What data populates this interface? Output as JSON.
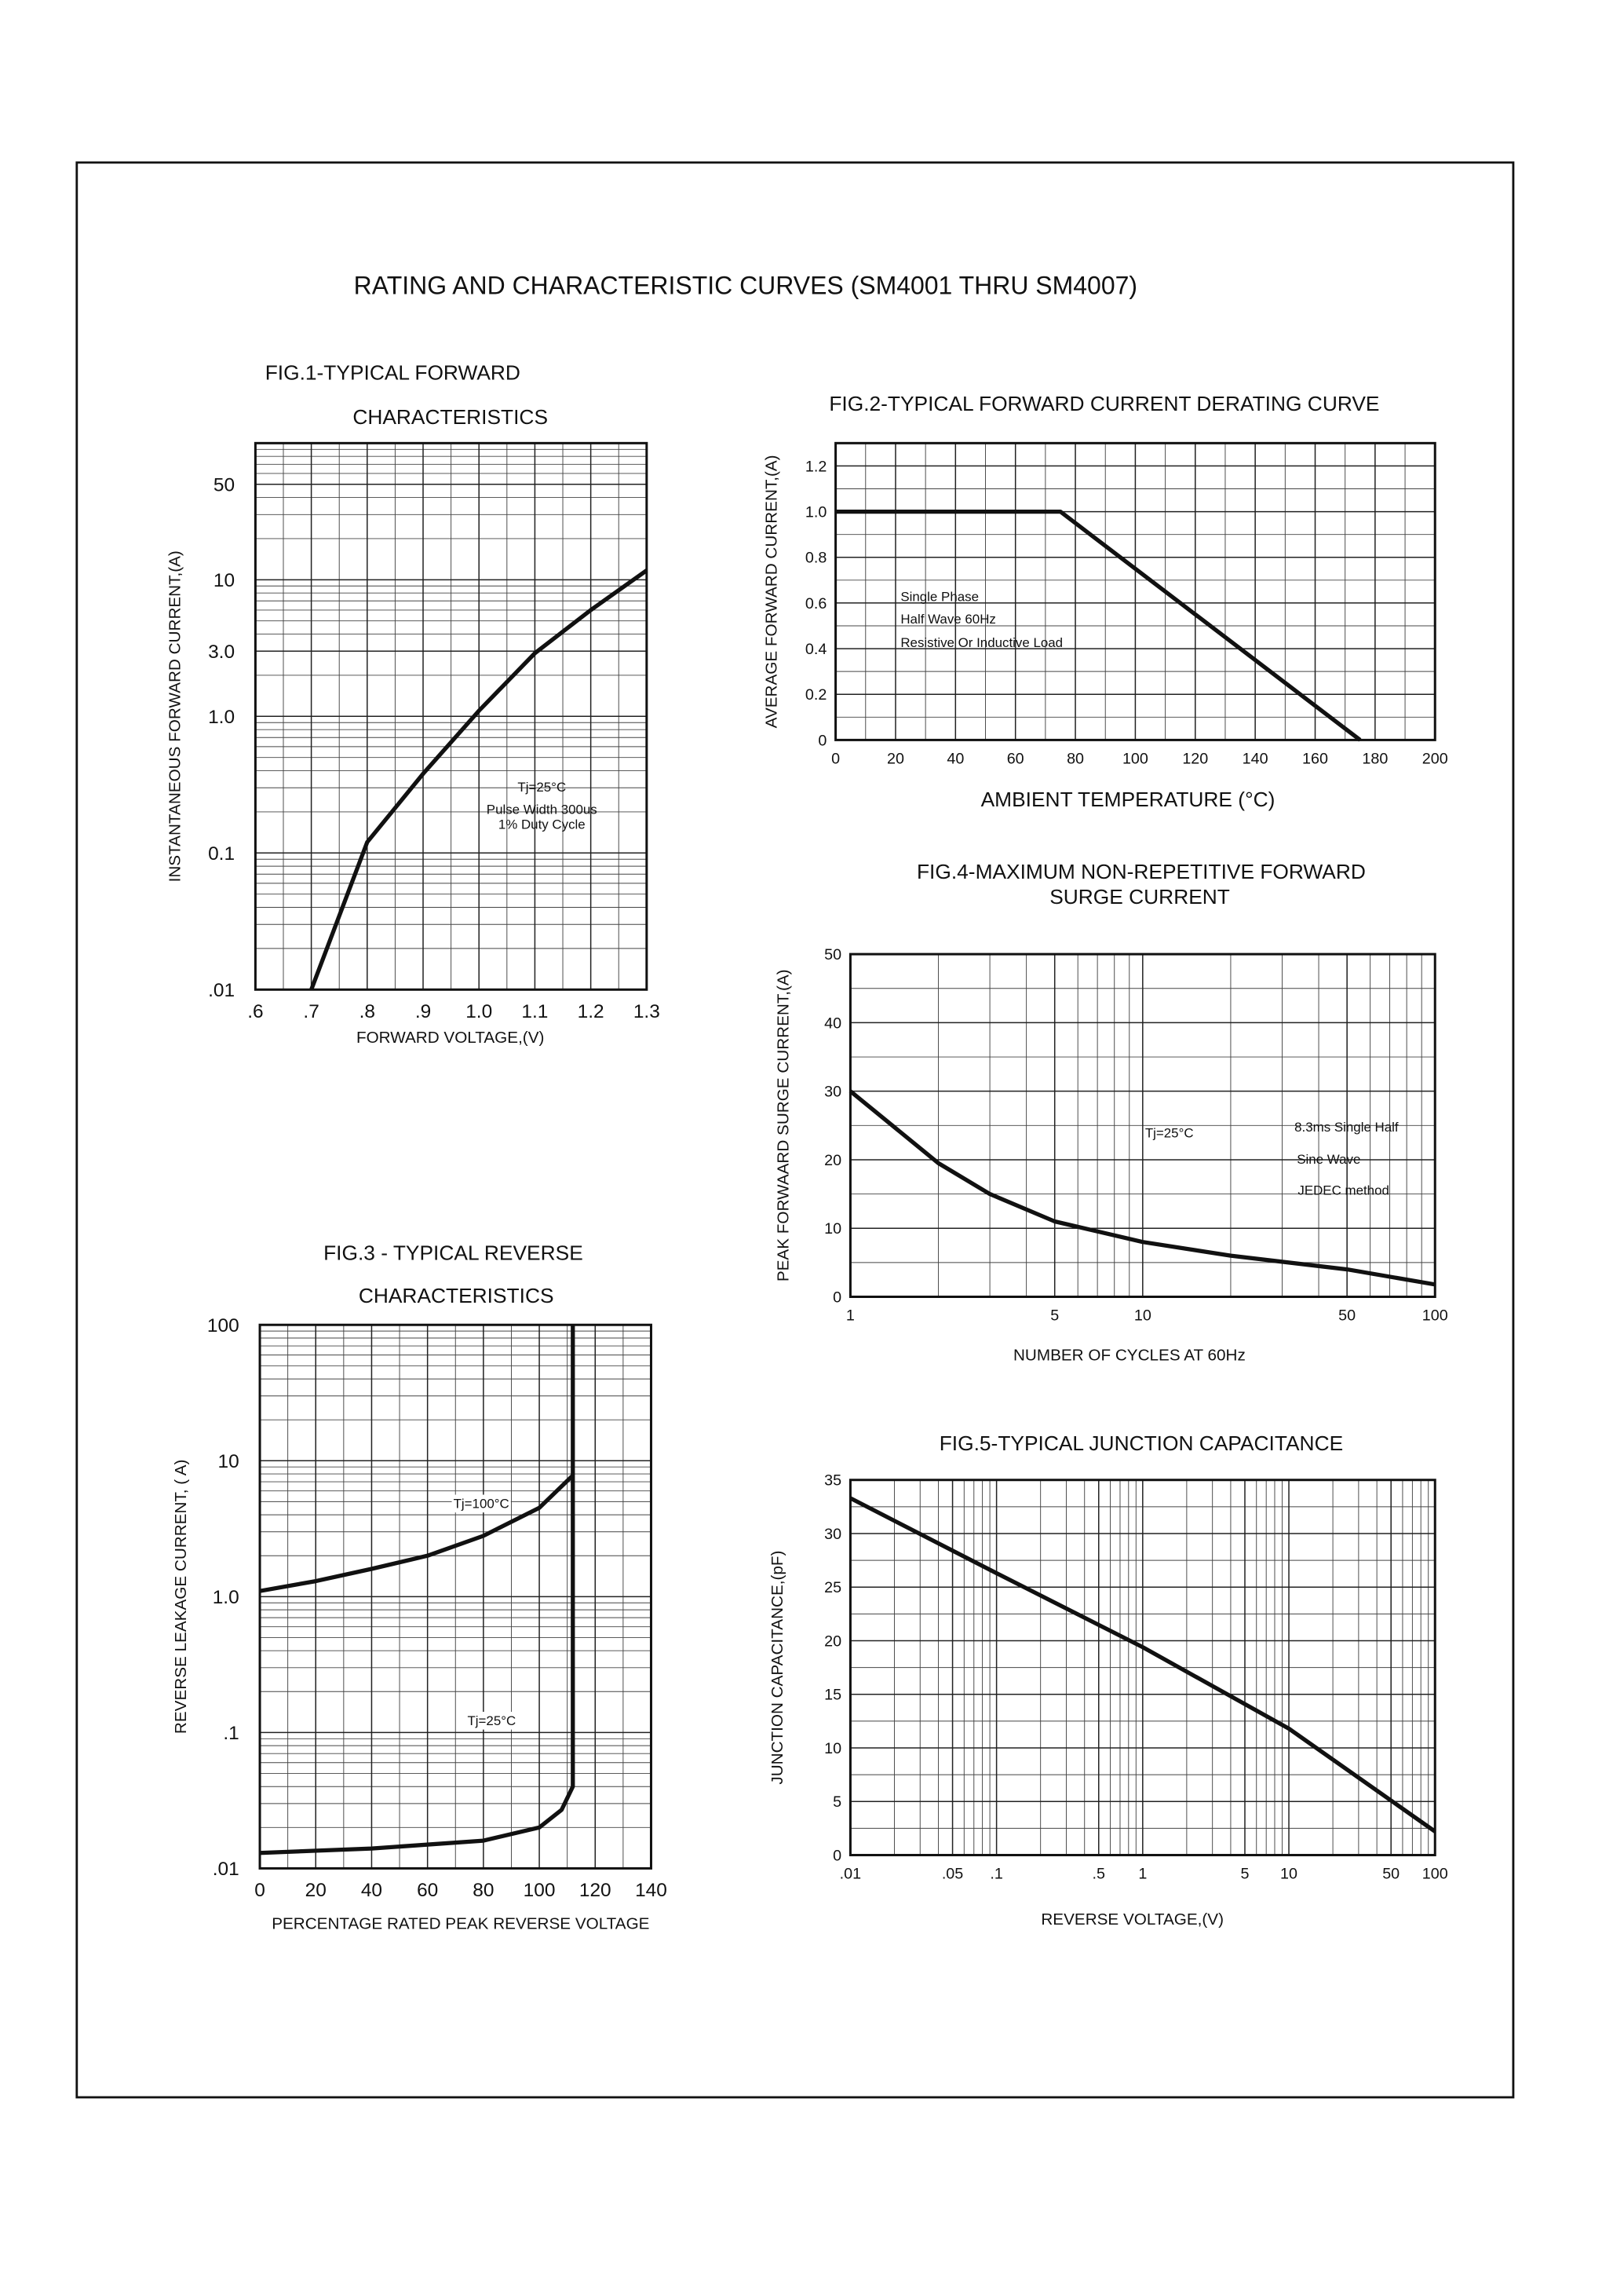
{
  "title": "RATING AND CHARACTERISTIC CURVES (SM4001 THRU SM4007)",
  "chart_data": [
    {
      "type": "line",
      "title": [
        "FIG.1-TYPICAL FORWARD",
        "CHARACTERISTICS"
      ],
      "xlabel": "FORWARD VOLTAGE,(V)",
      "ylabel": "INSTANTANEOUS FORWARD CURRENT,(A)",
      "xlim": [
        0.6,
        1.3
      ],
      "ylim": [
        0.01,
        100
      ],
      "ylog": true,
      "grid": true,
      "xticks": [
        {
          "value": 0.6,
          "label": ".6"
        },
        {
          "value": 0.7,
          "label": ".7"
        },
        {
          "value": 0.8,
          "label": ".8"
        },
        {
          "value": 0.9,
          "label": ".9"
        },
        {
          "value": 1,
          "label": "1.0"
        },
        1.1,
        1.2,
        1.3
      ],
      "yticks": [
        {
          "value": 0.01,
          "label": ".01"
        },
        0.1,
        {
          "value": 1,
          "label": "1.0"
        },
        {
          "value": 3,
          "label": "3.0"
        },
        10,
        50
      ],
      "annotations": [
        "Tj=25°C",
        "Pulse Width 300us",
        "1% Duty Cycle"
      ],
      "series": [
        {
          "color": "#111111",
          "x": [
            0.7,
            0.8,
            0.9,
            1.0,
            1.1,
            1.2,
            1.3
          ],
          "values": [
            0.01,
            0.12,
            0.38,
            1.1,
            2.9,
            6.0,
            11.7
          ]
        }
      ]
    },
    {
      "type": "line",
      "title": [
        "FIG.2-TYPICAL FORWARD CURRENT DERATING CURVE"
      ],
      "xlabel": "AMBIENT TEMPERATURE (°C)",
      "ylabel": "AVERAGE FORWARD CURRENT,(A)",
      "xlim": [
        0,
        200
      ],
      "ylim": [
        0,
        1.3
      ],
      "grid": true,
      "xticks": [
        0,
        20,
        40,
        60,
        80,
        100,
        120,
        140,
        160,
        180,
        200
      ],
      "yticks": [
        0,
        0.2,
        0.4,
        0.6,
        0.8,
        {
          "value": 1,
          "label": "1.0"
        },
        1.2
      ],
      "annotations": [
        "Single Phase",
        "Half Wave 60Hz",
        "Resistive Or Inductive Load"
      ],
      "series": [
        {
          "color": "#111111",
          "x": [
            0,
            75,
            175
          ],
          "values": [
            1.0,
            1.0,
            0
          ]
        }
      ]
    },
    {
      "type": "line",
      "title": [
        "FIG.3 - TYPICAL REVERSE",
        "CHARACTERISTICS"
      ],
      "xlabel": "PERCENTAGE RATED PEAK REVERSE VOLTAGE",
      "ylabel": "REVERSE LEAKAGE CURRENT, ( A)",
      "xlim": [
        0,
        140
      ],
      "ylim": [
        0.01,
        100
      ],
      "ylog": true,
      "grid": true,
      "xticks": [
        0,
        20,
        40,
        60,
        80,
        100,
        120,
        140
      ],
      "yticks": [
        {
          "value": 0.01,
          "label": ".01"
        },
        {
          "value": 0.1,
          "label": ".1"
        },
        {
          "value": 1,
          "label": "1.0"
        },
        10,
        100
      ],
      "series": [
        {
          "name": "Tj=100°C",
          "color": "#111111",
          "x": [
            0,
            20,
            40,
            60,
            80,
            100,
            112
          ],
          "values": [
            1.1,
            1.3,
            1.6,
            2.0,
            2.8,
            4.5,
            7.8
          ]
        },
        {
          "name": "Tj=25°C",
          "color": "#111111",
          "x": [
            0,
            40,
            80,
            100,
            108,
            112,
            112
          ],
          "values": [
            0.013,
            0.014,
            0.016,
            0.02,
            0.027,
            0.04,
            100
          ]
        }
      ]
    },
    {
      "type": "line",
      "title": [
        "FIG.4-MAXIMUM NON-REPETITIVE FORWARD",
        "SURGE CURRENT"
      ],
      "xlabel": "NUMBER OF CYCLES AT 60Hz",
      "ylabel": "PEAK FORWAARD SURGE CURRENT,(A)",
      "xlim": [
        1,
        100
      ],
      "xlog": true,
      "ylim": [
        0,
        50
      ],
      "grid": true,
      "xticks": [
        1,
        5,
        10,
        50,
        100
      ],
      "yticks": [
        0,
        10,
        20,
        30,
        40,
        50
      ],
      "annotations": [
        "Tj=25°C",
        "8.3ms Single Half",
        "Sine Wave",
        "JEDEC method"
      ],
      "series": [
        {
          "color": "#111111",
          "x": [
            1,
            2,
            3,
            5,
            10,
            20,
            50,
            100
          ],
          "values": [
            30,
            19.5,
            15,
            11,
            8,
            6,
            4,
            1.8
          ]
        }
      ]
    },
    {
      "type": "line",
      "title": [
        "FIG.5-TYPICAL JUNCTION CAPACITANCE"
      ],
      "xlabel": "REVERSE VOLTAGE,(V)",
      "ylabel": "JUNCTION CAPACITANCE,(pF)",
      "xlim": [
        0.01,
        100
      ],
      "xlog": true,
      "ylim": [
        0,
        35
      ],
      "grid": true,
      "xticks": [
        {
          "value": 0.01,
          "label": ".01"
        },
        {
          "value": 0.05,
          "label": ".05"
        },
        {
          "value": 0.1,
          "label": ".1"
        },
        {
          "value": 0.5,
          "label": ".5"
        },
        1,
        5,
        10,
        50,
        100
      ],
      "yticks": [
        0,
        5,
        10,
        15,
        20,
        25,
        30,
        35
      ],
      "series": [
        {
          "color": "#111111",
          "x": [
            0.01,
            0.1,
            1,
            10,
            100
          ],
          "values": [
            33.3,
            26.3,
            19.4,
            11.8,
            2.2
          ]
        }
      ]
    }
  ]
}
